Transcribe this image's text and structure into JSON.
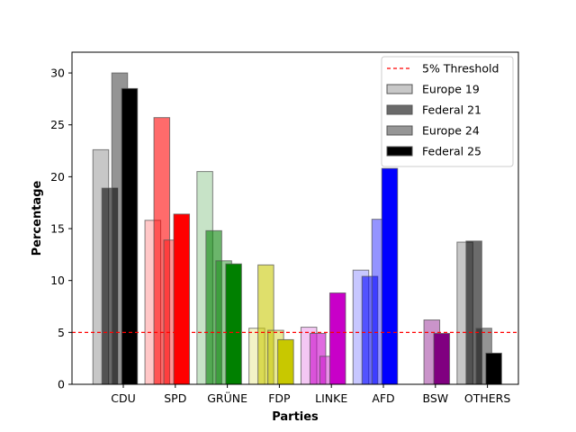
{
  "chart_data": {
    "type": "bar",
    "title": "",
    "xlabel": "Parties",
    "ylabel": "Percentage",
    "ylim": [
      0,
      32
    ],
    "yticks": [
      0,
      5,
      10,
      15,
      20,
      25,
      30
    ],
    "categories": [
      "CDU",
      "SPD",
      "GRÜNE",
      "FDP",
      "LINKE",
      "AFD",
      "BSW",
      "OTHERS"
    ],
    "party_colors": [
      "#000000",
      "#ff0000",
      "#008000",
      "#c8c800",
      "#c800c8",
      "#0000ff",
      "#800080",
      "#000000"
    ],
    "series": [
      {
        "name": "Europe 19",
        "values": [
          22.6,
          15.8,
          20.5,
          5.4,
          5.5,
          11.0,
          0,
          13.7
        ],
        "alpha": 0.22
      },
      {
        "name": "Federal 21",
        "values": [
          18.9,
          25.7,
          14.8,
          11.5,
          4.9,
          10.4,
          0,
          13.8
        ],
        "alpha": 0.58
      },
      {
        "name": "Europe 24",
        "values": [
          30.0,
          13.9,
          11.9,
          5.2,
          2.7,
          15.9,
          6.2,
          5.4
        ],
        "alpha": 0.42
      },
      {
        "name": "Federal 25",
        "values": [
          28.5,
          16.4,
          11.6,
          4.3,
          8.8,
          20.8,
          4.9,
          3.0
        ],
        "alpha": 1.0
      }
    ],
    "threshold": {
      "name": "5% Threshold",
      "value": 5,
      "color": "#ff0000"
    },
    "legend": {
      "placement": "top-right",
      "entries": [
        {
          "label": "5% Threshold",
          "kind": "line",
          "color": "#ff0000"
        },
        {
          "label": "Europe 19",
          "kind": "patch",
          "color": "#c8c8c8"
        },
        {
          "label": "Federal 21",
          "kind": "patch",
          "color": "#6a6a6a"
        },
        {
          "label": "Europe 24",
          "kind": "patch",
          "color": "#969696"
        },
        {
          "label": "Federal 25",
          "kind": "patch",
          "color": "#000000"
        }
      ]
    },
    "grid": false
  }
}
